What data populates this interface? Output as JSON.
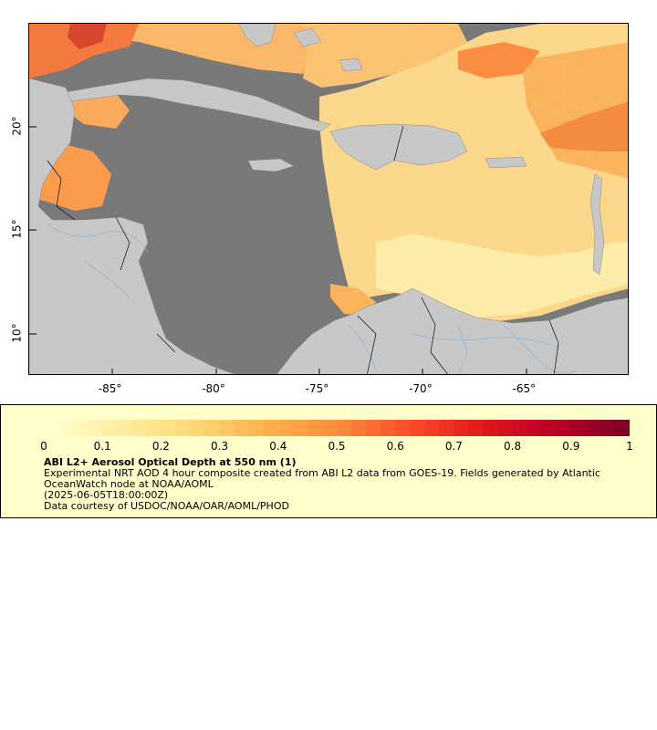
{
  "map": {
    "colors": {
      "land": "#c8c8c8",
      "nodata": "#777777",
      "border": "#000000",
      "river": "#8fb4d8"
    },
    "lon_ticks": [
      "-85°",
      "-80°",
      "-75°",
      "-70°",
      "-65°"
    ],
    "lat_ticks": [
      "20°",
      "15°",
      "10°"
    ],
    "lon_range": [
      -89,
      -60
    ],
    "lat_range": [
      8,
      25
    ],
    "lon_values": [
      -85,
      -80,
      -75,
      -70,
      -65
    ],
    "lat_values": [
      20,
      15,
      10
    ]
  },
  "legend": {
    "colorbar_labels": [
      "0",
      "0.1",
      "0.2",
      "0.3",
      "0.4",
      "0.5",
      "0.6",
      "0.7",
      "0.8",
      "0.9",
      "1"
    ],
    "colorbar_range": [
      0,
      1
    ],
    "colorbar_stops": [
      "#ffffcc",
      "#ffeda0",
      "#fed976",
      "#feb24c",
      "#fd8d3c",
      "#fc4e2a",
      "#e31a1c",
      "#bd0026",
      "#800026"
    ],
    "title": "ABI L2+ Aerosol Optical Depth at 550 nm (1)",
    "description": "Experimental NRT AOD 4 hour composite created from ABI L2 data from GOES-19. Fields generated by Atlantic OceanWatch node at NOAA/AOML",
    "date": "(2025-06-05T18:00:00Z)",
    "credit": "Data courtesy of USDOC/NOAA/OAR/AOML/PHOD"
  }
}
